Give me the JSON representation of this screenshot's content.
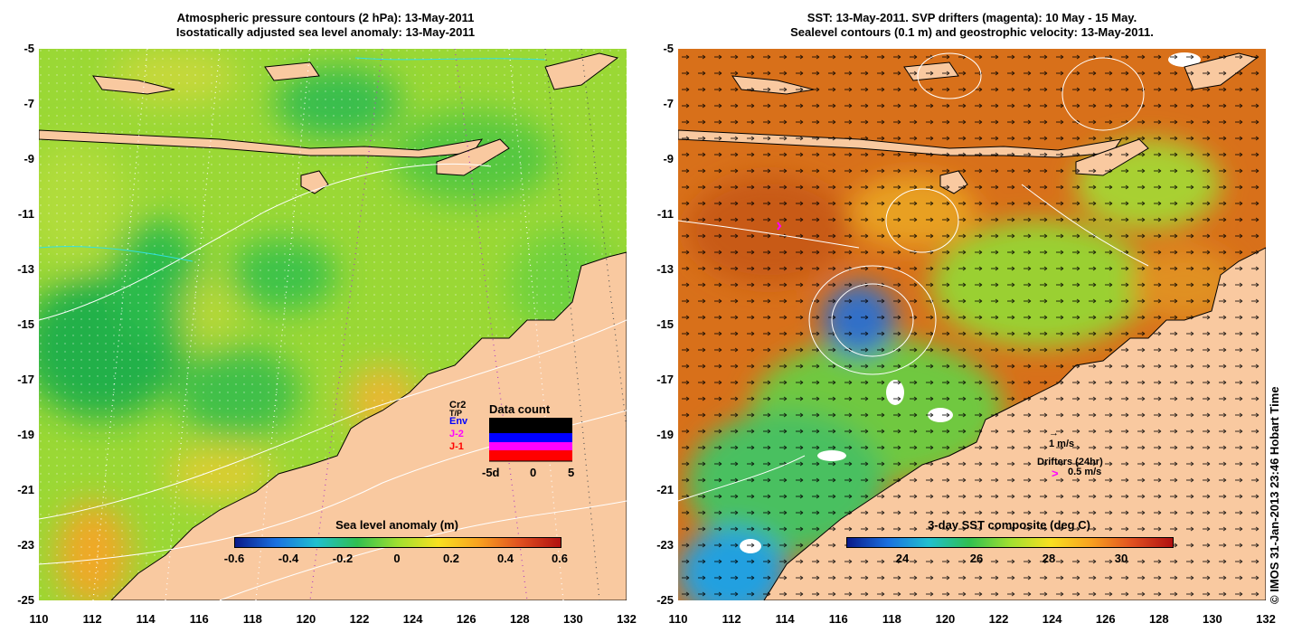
{
  "left_panel": {
    "title_line1": "Atmospheric pressure contours (2 hPa): 13-May-2011",
    "title_line2": "Isostatically adjusted sea level anomaly: 13-May-2011",
    "colorbar": {
      "title": "Sea level anomaly (m)",
      "ticks": [
        "-0.6",
        "-0.4",
        "-0.2",
        "0",
        "0.2",
        "0.4",
        "0.6"
      ]
    },
    "data_count": {
      "title": "Data count",
      "x_ticks": [
        "-5d",
        "0",
        "5"
      ],
      "missions": [
        "Cr2",
        "T/P",
        "Env",
        "J-2",
        "J-1"
      ],
      "mission_colors": [
        "#000000",
        "#000000",
        "#0000ff",
        "#ff00ff",
        "#ff0000"
      ]
    }
  },
  "right_panel": {
    "title_line1": "SST: 13-May-2011. SVP drifters (magenta): 10 May - 15 May.",
    "title_line2": "Sealevel contours (0.1 m) and geostrophic velocity: 13-May-2011.",
    "colorbar": {
      "title": "3-day SST composite (deg C)",
      "ticks": [
        "24",
        "26",
        "28",
        "30"
      ]
    },
    "velocity_scale": "1 m/s",
    "drifters_label": "Drifters (24hr)",
    "drifters_marker": ">",
    "drifters_speed": "0.5 m/s"
  },
  "axes": {
    "y_ticks": [
      "-5",
      "-7",
      "-9",
      "-11",
      "-13",
      "-15",
      "-17",
      "-19",
      "-21",
      "-23",
      "-25"
    ],
    "x_ticks": [
      "110",
      "112",
      "114",
      "116",
      "118",
      "120",
      "122",
      "124",
      "126",
      "128",
      "130",
      "132"
    ],
    "lon_range": [
      110,
      132
    ],
    "lat_range": [
      -25,
      -5
    ]
  },
  "credit": "© IMOS 31-Jan-2013 23:46 Hobart Time",
  "colors": {
    "land": "#f9c9a0",
    "sla_low": "#1a9a3a",
    "sla_mid": "#8fd832",
    "sla_high": "#f2a020",
    "sst_warm": "#d8701a",
    "sst_cool": "#20a0e0"
  }
}
